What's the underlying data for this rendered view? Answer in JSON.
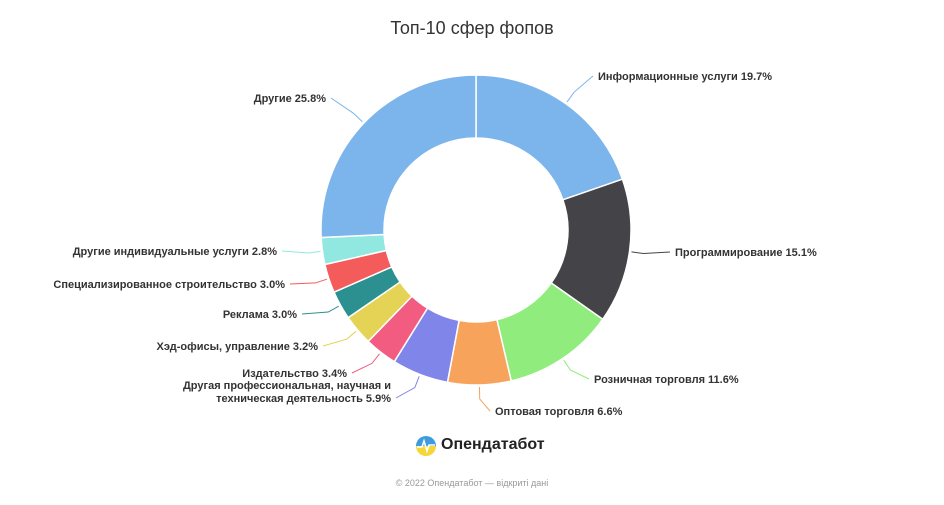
{
  "chart_data": {
    "type": "pie",
    "variant": "donut",
    "title": "Топ-10 сфер фопов",
    "slices": [
      {
        "label": "Информационные услуги",
        "value": 19.7,
        "display": "Информационные услуги 19.7%",
        "color": "#7cb5ec"
      },
      {
        "label": "Программирование",
        "value": 15.1,
        "display": "Программирование 15.1%",
        "color": "#434348"
      },
      {
        "label": "Розничная торговля",
        "value": 11.6,
        "display": "Розничная торговля 11.6%",
        "color": "#90ed7d"
      },
      {
        "label": "Оптовая торговля",
        "value": 6.6,
        "display": "Оптовая торговля 6.6%",
        "color": "#f7a35c"
      },
      {
        "label": "Другая профессиональная, научная и техническая деятельность",
        "value": 5.9,
        "display": [
          "Другая профессиональная, научная и",
          "техническая деятельность 5.9%"
        ],
        "color": "#8085e9"
      },
      {
        "label": "Издательство",
        "value": 3.4,
        "display": "Издательство 3.4%",
        "color": "#f15c80"
      },
      {
        "label": "Хэд-офисы, управление",
        "value": 3.2,
        "display": "Хэд-офисы, управление 3.2%",
        "color": "#e4d354"
      },
      {
        "label": "Реклама",
        "value": 3.0,
        "display": "Реклама 3.0%",
        "color": "#2b908f"
      },
      {
        "label": "Специализированное строительство",
        "value": 3.0,
        "display": "Специализированное строительство 3.0%",
        "color": "#f45b5b"
      },
      {
        "label": "Другие индивидуальные услуги",
        "value": 2.8,
        "display": "Другие индивидуальные услуги 2.8%",
        "color": "#91e8e1"
      },
      {
        "label": "Другие",
        "value": 25.8,
        "display": "Другие 25.8%",
        "color": "#7cb5ec"
      }
    ]
  },
  "brand": {
    "name": "Опендатабот",
    "icon": "opendatabot-logo-icon"
  },
  "footer": {
    "copyright": "© 2022 Опендатабот — відкриті дані"
  }
}
